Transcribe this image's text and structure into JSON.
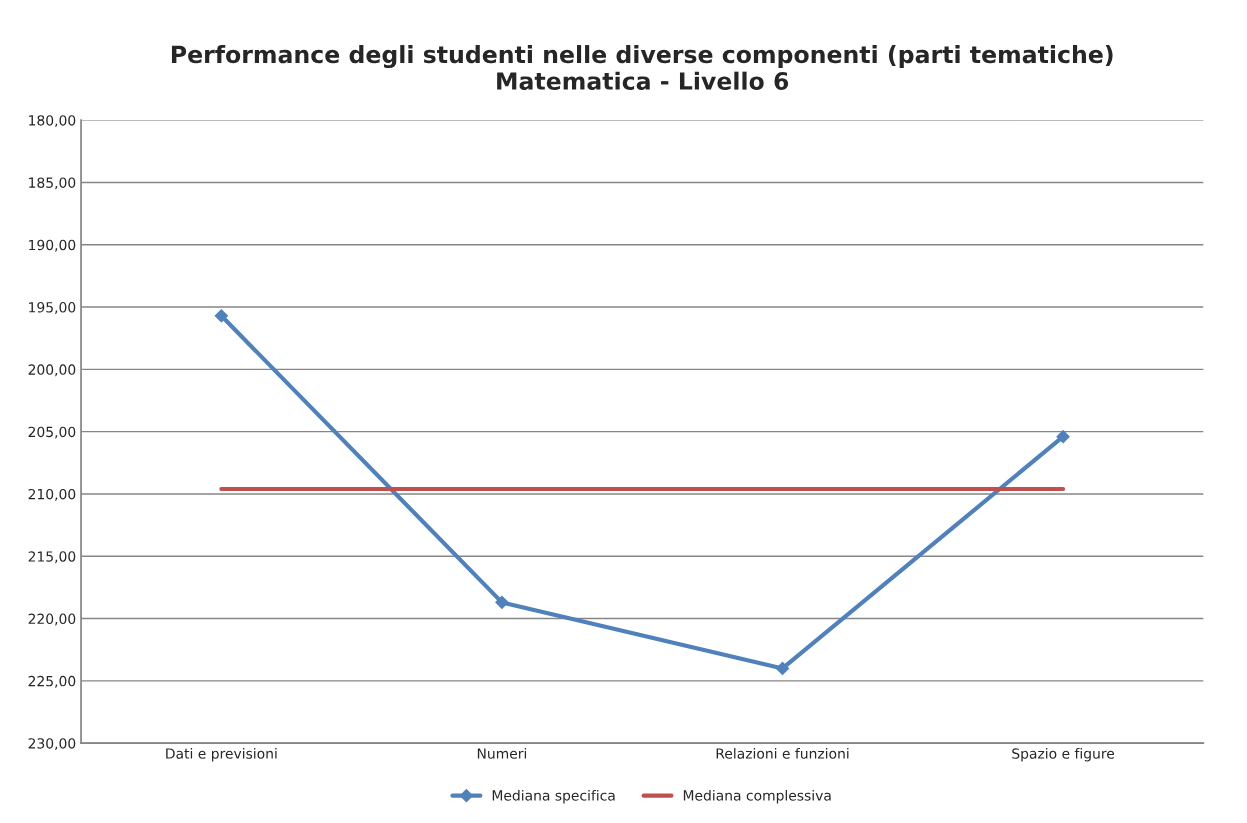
{
  "chart_data": {
    "type": "line",
    "title": "Performance degli studenti nelle diverse componenti (parti tematiche)\nMatematica - Livello 6",
    "categories": [
      "Dati e previsioni",
      "Numeri",
      "Relazioni e funzioni",
      "Spazio e figure"
    ],
    "series": [
      {
        "name": "Mediana specifica",
        "color": "#4f81bd",
        "values": [
          195.7,
          218.7,
          224.0,
          205.4
        ],
        "marker": "diamond"
      },
      {
        "name": "Mediana complessiva",
        "color": "#c0504d",
        "values": [
          209.6,
          209.6,
          209.6,
          209.6
        ],
        "marker": "none"
      }
    ],
    "ylim": [
      230,
      180
    ],
    "yticks": [
      {
        "value": 180,
        "label": "180,00"
      },
      {
        "value": 185,
        "label": "185,00"
      },
      {
        "value": 190,
        "label": "190,00"
      },
      {
        "value": 195,
        "label": "195,00"
      },
      {
        "value": 200,
        "label": "200,00"
      },
      {
        "value": 205,
        "label": "205,00"
      },
      {
        "value": 210,
        "label": "210,00"
      },
      {
        "value": 215,
        "label": "215,00"
      },
      {
        "value": 220,
        "label": "220,00"
      },
      {
        "value": 225,
        "label": "225,00"
      },
      {
        "value": 230,
        "label": "230,00"
      }
    ],
    "grid": "y",
    "legend": "bottom",
    "line_style": "solid"
  }
}
